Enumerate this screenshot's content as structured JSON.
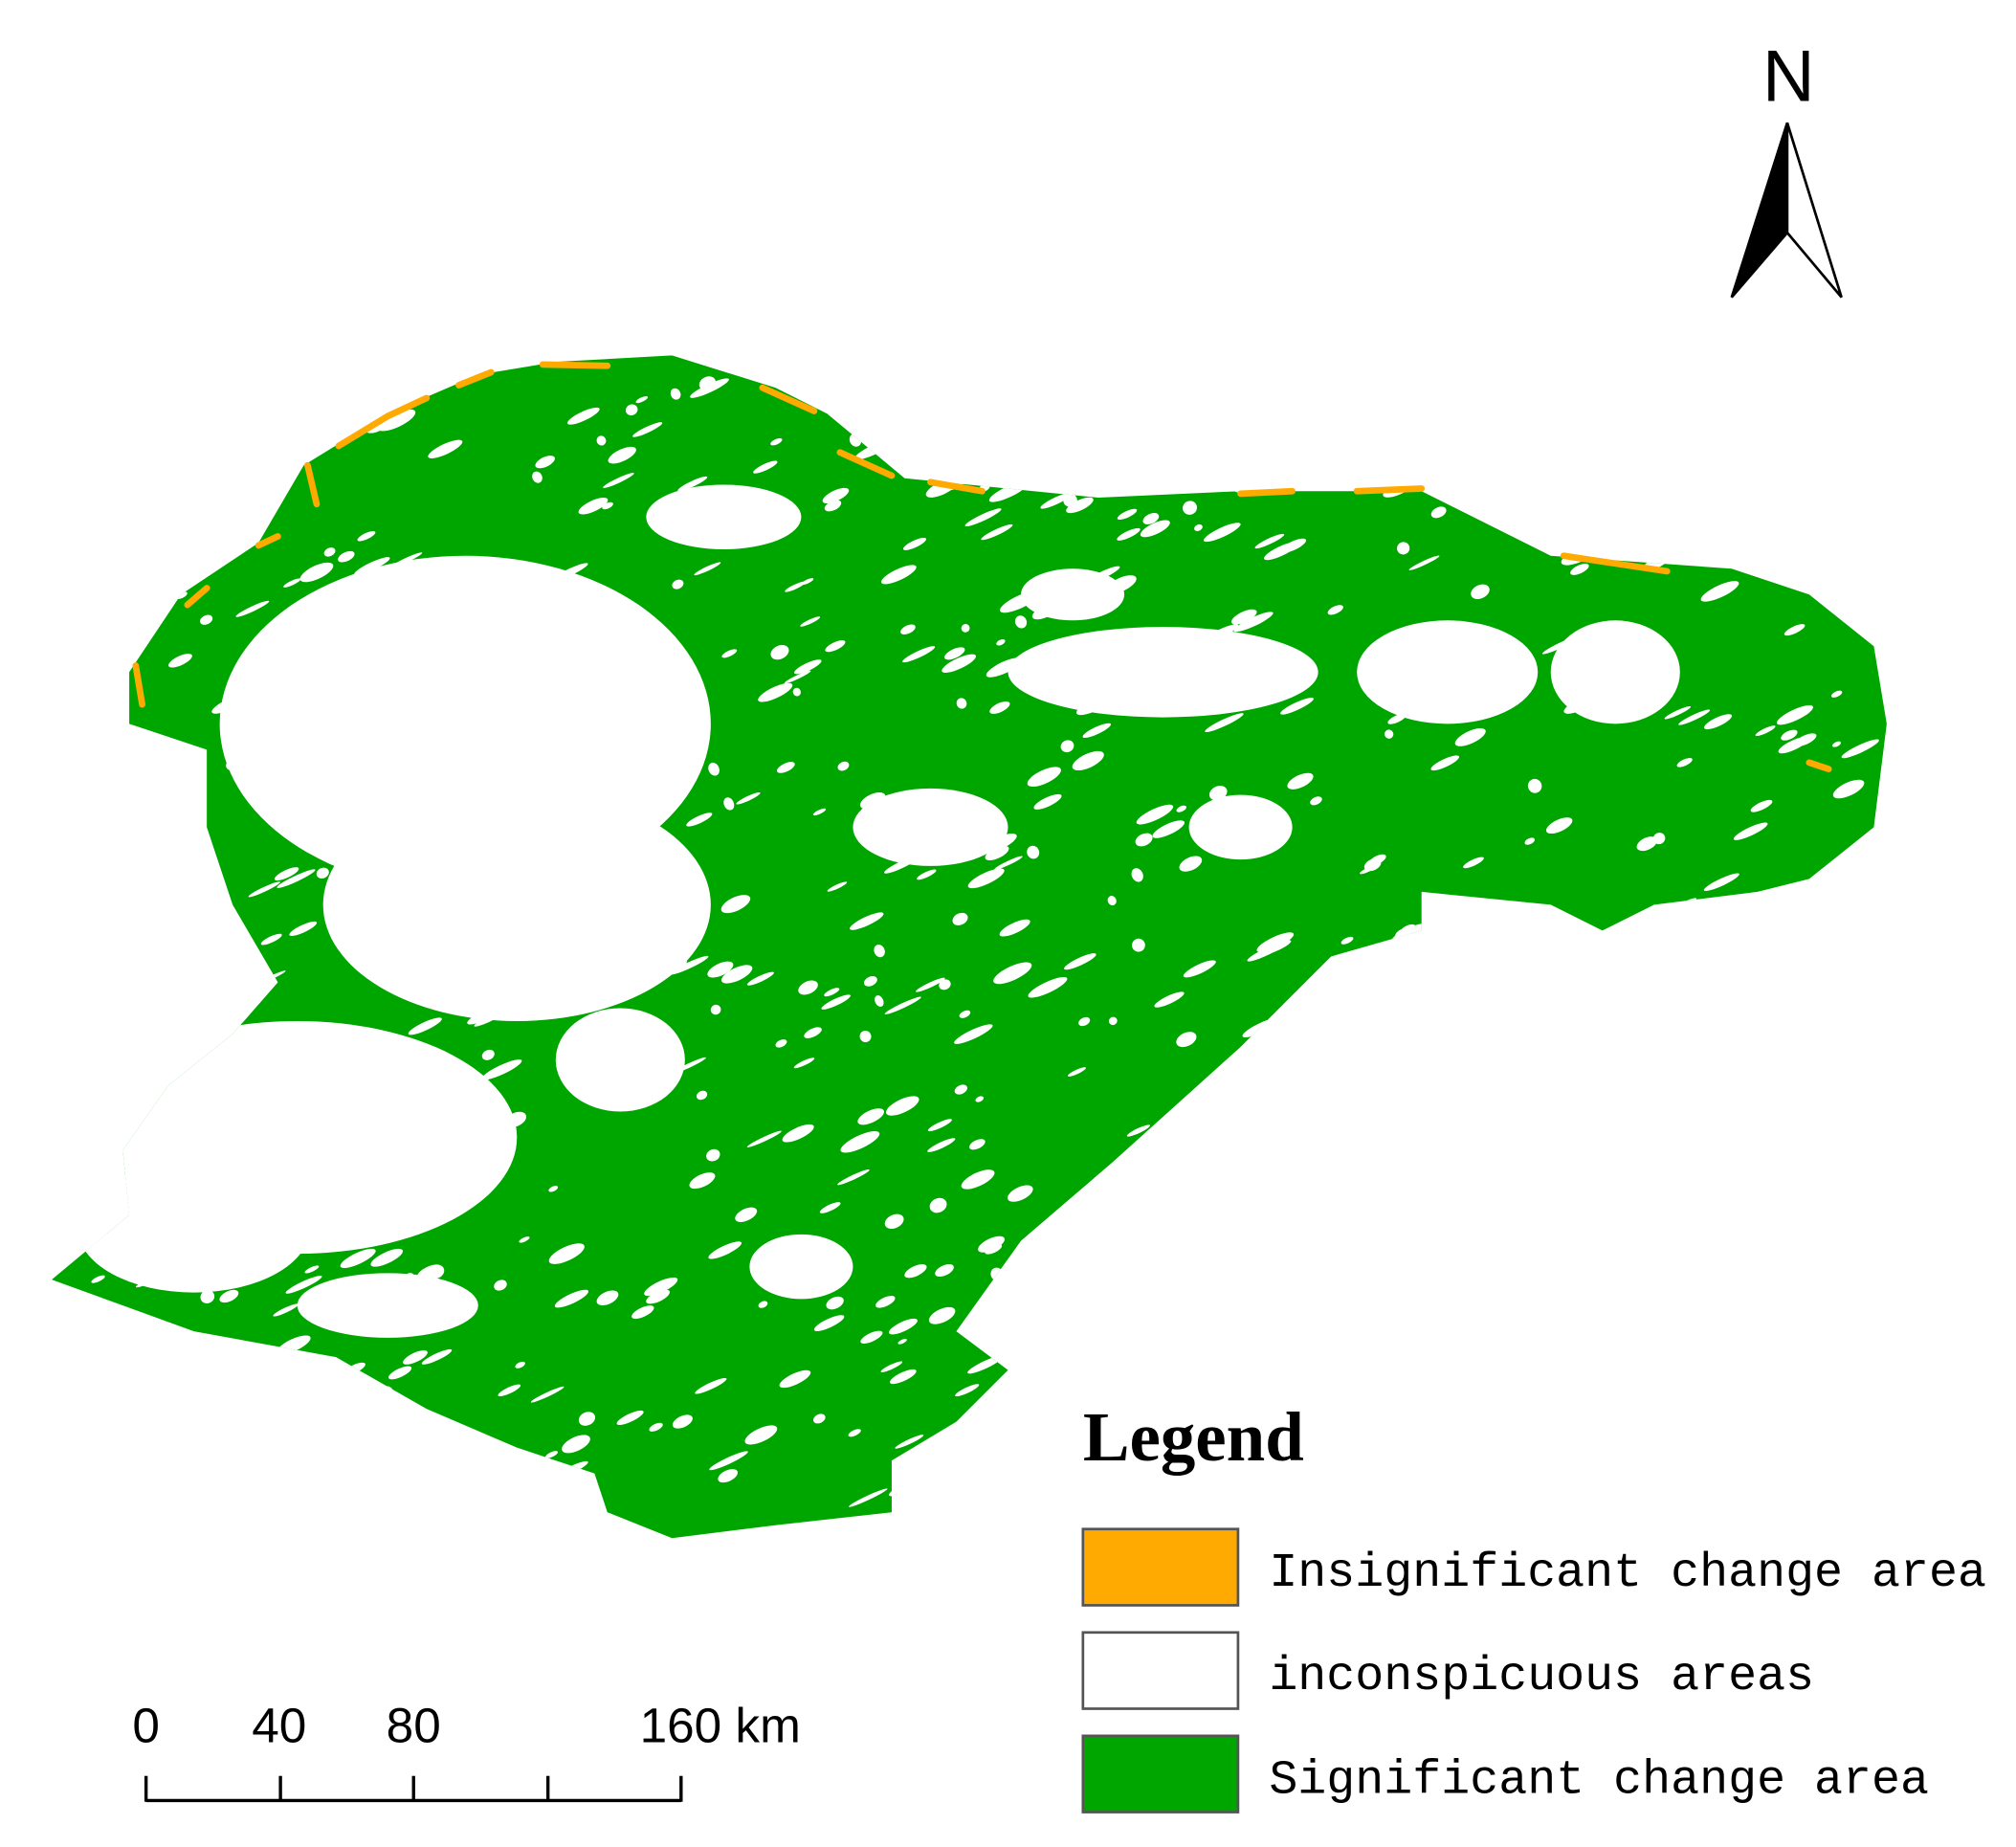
{
  "north": "N",
  "legend": {
    "title": "Legend",
    "items": [
      {
        "label": "Insignificant change area",
        "color": "#ffaa00"
      },
      {
        "label": "inconspicuous areas",
        "color": "#ffffff"
      },
      {
        "label": "Significant change area",
        "color": "#00a600"
      }
    ]
  },
  "scale_bar": {
    "labels": [
      "0",
      "40",
      "80",
      "160 km"
    ]
  }
}
